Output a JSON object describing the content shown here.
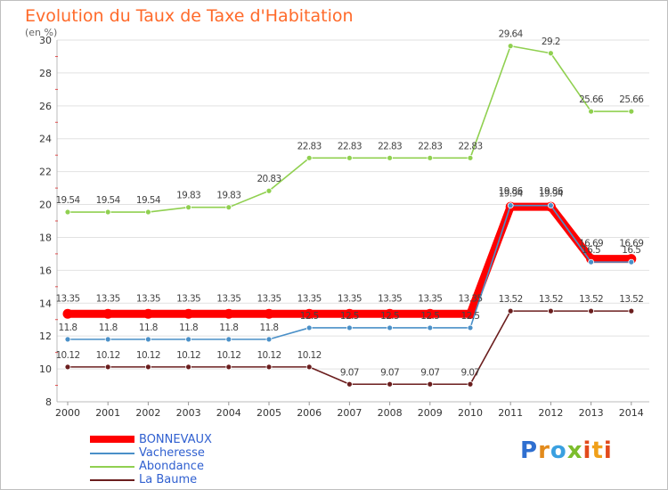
{
  "title": "Evolution du Taux de Taxe d'Habitation",
  "subtitle": "(en %)",
  "chart_data": {
    "type": "line",
    "x": [
      "2000",
      "2001",
      "2002",
      "2003",
      "2004",
      "2005",
      "2006",
      "2007",
      "2008",
      "2009",
      "2010",
      "2011",
      "2012",
      "2013",
      "2014"
    ],
    "ylim": [
      8,
      30
    ],
    "yticks": [
      "8",
      "10",
      "12",
      "14",
      "16",
      "18",
      "20",
      "22",
      "24",
      "26",
      "28",
      "30"
    ],
    "grid": "horizontal",
    "legend_position": "bottom-left",
    "series": [
      {
        "name": "BONNEVAUX",
        "color": "#ff0000",
        "values": [
          13.35,
          13.35,
          13.35,
          13.35,
          13.35,
          13.35,
          13.35,
          13.35,
          13.35,
          13.35,
          13.35,
          19.86,
          19.86,
          16.69,
          16.69
        ],
        "labels": [
          "13.35",
          "13.35",
          "13.35",
          "13.35",
          "13.35",
          "13.35",
          "13.35",
          "13.35",
          "13.35",
          "13.35",
          "13.35",
          "19.86",
          "19.86",
          "16.69",
          "16.69"
        ]
      },
      {
        "name": "Vacheresse",
        "color": "#4a90c8",
        "values": [
          11.8,
          11.8,
          11.8,
          11.8,
          11.8,
          11.8,
          12.5,
          12.5,
          12.5,
          12.5,
          12.5,
          19.94,
          19.94,
          16.5,
          16.5
        ],
        "labels": [
          "11.8",
          "11.8",
          "11.8",
          "11.8",
          "11.8",
          "11.8",
          "12.5",
          "12.5",
          "12.5",
          "12.5",
          "12.5",
          "19.94",
          "19.94",
          "16.5",
          "16.5"
        ]
      },
      {
        "name": "Abondance",
        "color": "#90d050",
        "values": [
          19.54,
          19.54,
          19.54,
          19.83,
          19.83,
          20.83,
          22.83,
          22.83,
          22.83,
          22.83,
          22.83,
          29.64,
          29.2,
          25.66,
          25.66
        ],
        "labels": [
          "19.54",
          "19.54",
          "19.54",
          "19.83",
          "19.83",
          "20.83",
          "22.83",
          "22.83",
          "22.83",
          "22.83",
          "22.83",
          "29.64",
          "29.2",
          "25.66",
          "25.66"
        ]
      },
      {
        "name": "La Baume",
        "color": "#6b1e1e",
        "values": [
          10.12,
          10.12,
          10.12,
          10.12,
          10.12,
          10.12,
          10.12,
          9.07,
          9.07,
          9.07,
          9.07,
          13.52,
          13.52,
          13.52,
          13.52
        ],
        "labels": [
          "10.12",
          "10.12",
          "10.12",
          "10.12",
          "10.12",
          "10.12",
          "10.12",
          "9.07",
          "9.07",
          "9.07",
          "9.07",
          "13.52",
          "13.52",
          "13.52",
          "13.52"
        ]
      }
    ]
  },
  "logo": {
    "text": [
      "P",
      "r",
      "o",
      "x",
      "i",
      "t",
      "i"
    ]
  }
}
